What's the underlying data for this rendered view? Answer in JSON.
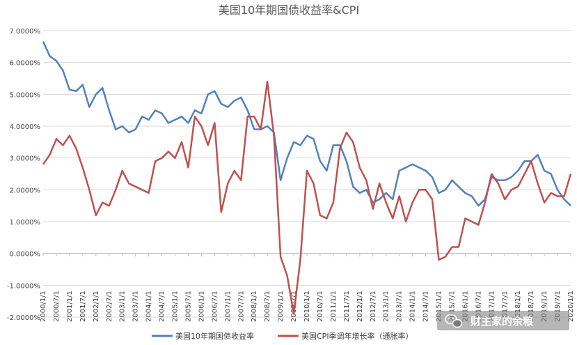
{
  "chart_data": {
    "type": "line",
    "title": "美国10年期国债收益率&CPI",
    "y_ticks": [
      "7.0000%",
      "6.0000%",
      "5.0000%",
      "4.0000%",
      "3.0000%",
      "2.0000%",
      "1.0000%",
      "0.0000%",
      "-1.0000%",
      "-2.0000%"
    ],
    "ylim": [
      -2,
      7
    ],
    "x_ticks": [
      "2000/1/1",
      "2000/7/1",
      "2001/1/1",
      "2001/7/1",
      "2002/1/1",
      "2002/7/1",
      "2003/1/1",
      "2003/7/1",
      "2004/1/1",
      "2004/7/1",
      "2005/1/1",
      "2005/7/1",
      "2006/1/1",
      "2006/7/1",
      "2007/1/1",
      "2007/7/1",
      "2008/1/1",
      "2008/7/1",
      "2009/1/1",
      "2009/7/1",
      "2010/1/1",
      "2010/7/1",
      "2011/1/1",
      "2011/7/1",
      "2012/1/1",
      "2012/7/1",
      "2013/1/1",
      "2013/7/1",
      "2014/1/1",
      "2014/7/1",
      "2015/1/1",
      "2015/7/1",
      "2016/1/1",
      "2016/7/1",
      "2017/1/1",
      "2017/7/1",
      "2018/1/1",
      "2018/7/1",
      "2019/1/1",
      "2019/7/1",
      "2020/1/1"
    ],
    "grid": true,
    "legend_position": "bottom",
    "series": [
      {
        "name": "美国10年期国债收益率",
        "color": "#4f81bd",
        "x": [
          "2000/1",
          "2000/4",
          "2000/7",
          "2000/10",
          "2001/1",
          "2001/4",
          "2001/7",
          "2001/10",
          "2002/1",
          "2002/4",
          "2002/7",
          "2002/10",
          "2003/1",
          "2003/4",
          "2003/7",
          "2003/10",
          "2004/1",
          "2004/4",
          "2004/7",
          "2004/10",
          "2005/1",
          "2005/4",
          "2005/7",
          "2005/10",
          "2006/1",
          "2006/4",
          "2006/7",
          "2006/10",
          "2007/1",
          "2007/4",
          "2007/7",
          "2007/10",
          "2008/1",
          "2008/4",
          "2008/7",
          "2008/10",
          "2009/1",
          "2009/4",
          "2009/7",
          "2009/10",
          "2010/1",
          "2010/4",
          "2010/7",
          "2010/10",
          "2011/1",
          "2011/4",
          "2011/7",
          "2011/10",
          "2012/1",
          "2012/4",
          "2012/7",
          "2012/10",
          "2013/1",
          "2013/4",
          "2013/7",
          "2013/10",
          "2014/1",
          "2014/4",
          "2014/7",
          "2014/10",
          "2015/1",
          "2015/4",
          "2015/7",
          "2015/10",
          "2016/1",
          "2016/4",
          "2016/7",
          "2016/10",
          "2017/1",
          "2017/4",
          "2017/7",
          "2017/10",
          "2018/1",
          "2018/4",
          "2018/7",
          "2018/10",
          "2019/1",
          "2019/4",
          "2019/7",
          "2019/10",
          "2020/1"
        ],
        "values": [
          6.66,
          6.2,
          6.05,
          5.75,
          5.15,
          5.1,
          5.3,
          4.6,
          5.0,
          5.2,
          4.5,
          3.9,
          4.0,
          3.8,
          3.9,
          4.3,
          4.2,
          4.5,
          4.4,
          4.1,
          4.2,
          4.3,
          4.1,
          4.5,
          4.4,
          5.0,
          5.1,
          4.7,
          4.6,
          4.8,
          4.9,
          4.5,
          3.9,
          3.9,
          4.0,
          3.8,
          2.3,
          3.0,
          3.5,
          3.4,
          3.7,
          3.6,
          2.9,
          2.6,
          3.4,
          3.4,
          2.9,
          2.1,
          1.9,
          2.0,
          1.6,
          1.7,
          1.9,
          1.7,
          2.6,
          2.7,
          2.8,
          2.7,
          2.6,
          2.4,
          1.9,
          2.0,
          2.3,
          2.1,
          1.9,
          1.8,
          1.5,
          1.7,
          2.4,
          2.3,
          2.3,
          2.4,
          2.6,
          2.9,
          2.9,
          3.1,
          2.6,
          2.5,
          2.0,
          1.7,
          1.5
        ],
        "label_font_size": 11
      },
      {
        "name": "美国CPI季调年增长率（通胀率）",
        "color": "#c0504d",
        "x": [
          "2000/1",
          "2000/4",
          "2000/7",
          "2000/10",
          "2001/1",
          "2001/4",
          "2001/7",
          "2001/10",
          "2002/1",
          "2002/4",
          "2002/7",
          "2002/10",
          "2003/1",
          "2003/4",
          "2003/7",
          "2003/10",
          "2004/1",
          "2004/4",
          "2004/7",
          "2004/10",
          "2005/1",
          "2005/4",
          "2005/7",
          "2005/10",
          "2006/1",
          "2006/4",
          "2006/7",
          "2006/10",
          "2007/1",
          "2007/4",
          "2007/7",
          "2007/10",
          "2008/1",
          "2008/4",
          "2008/7",
          "2008/10",
          "2009/1",
          "2009/4",
          "2009/7",
          "2009/10",
          "2010/1",
          "2010/4",
          "2010/7",
          "2010/10",
          "2011/1",
          "2011/4",
          "2011/7",
          "2011/10",
          "2012/1",
          "2012/4",
          "2012/7",
          "2012/10",
          "2013/1",
          "2013/4",
          "2013/7",
          "2013/10",
          "2014/1",
          "2014/4",
          "2014/7",
          "2014/10",
          "2015/1",
          "2015/4",
          "2015/7",
          "2015/10",
          "2016/1",
          "2016/4",
          "2016/7",
          "2016/10",
          "2017/1",
          "2017/4",
          "2017/7",
          "2017/10",
          "2018/1",
          "2018/4",
          "2018/7",
          "2018/10",
          "2019/1",
          "2019/4",
          "2019/7",
          "2019/10",
          "2020/1"
        ],
        "values": [
          2.8,
          3.1,
          3.6,
          3.4,
          3.7,
          3.3,
          2.7,
          2.0,
          1.2,
          1.6,
          1.5,
          2.0,
          2.6,
          2.2,
          2.1,
          2.0,
          1.9,
          2.9,
          3.0,
          3.2,
          3.0,
          3.5,
          2.7,
          4.3,
          4.0,
          3.4,
          4.1,
          1.3,
          2.2,
          2.6,
          2.3,
          4.3,
          4.3,
          3.9,
          5.4,
          3.7,
          -0.1,
          -0.7,
          -1.9,
          -0.2,
          2.6,
          2.2,
          1.2,
          1.1,
          1.6,
          3.3,
          3.8,
          3.5,
          2.7,
          2.3,
          1.4,
          2.2,
          1.6,
          1.1,
          1.8,
          1.0,
          1.6,
          2.0,
          2.0,
          1.7,
          -0.2,
          -0.1,
          0.2,
          0.2,
          1.1,
          1.0,
          0.9,
          1.6,
          2.5,
          2.2,
          1.7,
          2.0,
          2.1,
          2.5,
          2.9,
          2.2,
          1.6,
          1.9,
          1.8,
          1.8,
          2.5
        ],
        "label_font_size": 11
      }
    ]
  },
  "watermark": {
    "text": "财主家的余粮",
    "icon": "wechat-bubbles-icon"
  }
}
